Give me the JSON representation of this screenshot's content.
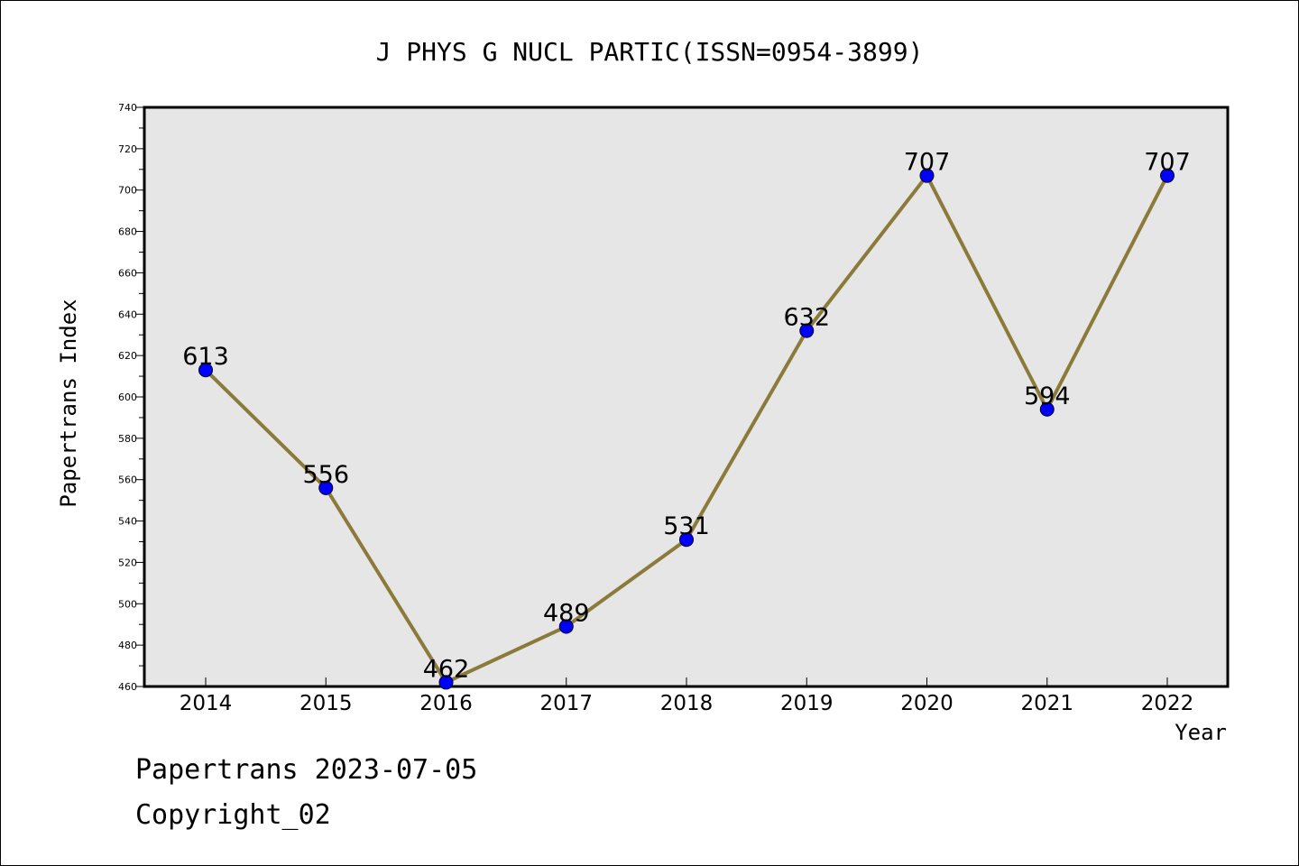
{
  "chart_data": {
    "type": "line",
    "title": "J PHYS G NUCL PARTIC(ISSN=0954-3899)",
    "xlabel": "Year",
    "ylabel": "Papertrans Index",
    "categories": [
      "2014",
      "2015",
      "2016",
      "2017",
      "2018",
      "2019",
      "2020",
      "2021",
      "2022"
    ],
    "values": [
      613,
      556,
      462,
      489,
      531,
      632,
      707,
      594,
      707
    ],
    "data_labels": [
      "613",
      "556",
      "462",
      "489",
      "531",
      "632",
      "707",
      "594",
      "707"
    ],
    "ylim": [
      460,
      740
    ],
    "yticks": [
      "460",
      "480",
      "500",
      "520",
      "540",
      "560",
      "580",
      "600",
      "620",
      "640",
      "660",
      "680",
      "700",
      "720",
      "740"
    ],
    "grid": false,
    "colors": {
      "line": "#8b7a3a",
      "marker": "#0000ff",
      "plot_background": "#e6e6e6"
    }
  },
  "footer": {
    "date_line": "Papertrans 2023-07-05",
    "copyright": "Copyright_02"
  }
}
